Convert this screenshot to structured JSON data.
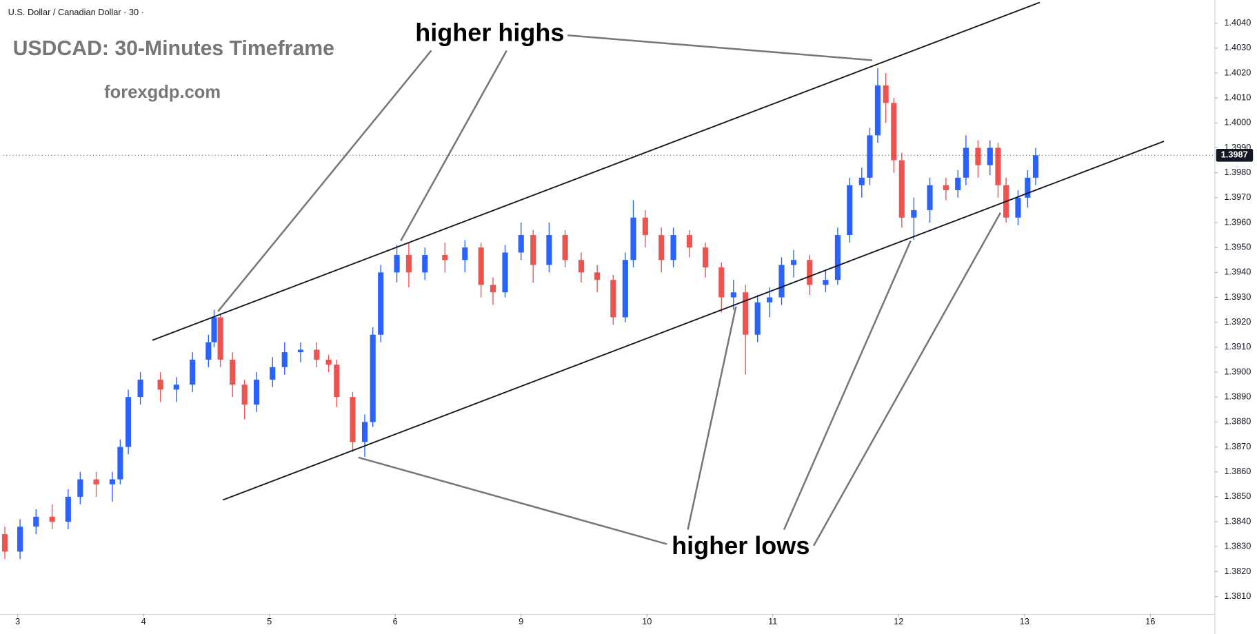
{
  "chart_data": {
    "type": "candlestick",
    "header": "U.S. Dollar / Canadian Dollar · 30 ·",
    "title": "USDCAD: 30-Minutes Timeframe",
    "subtitle": "forexgdp.com",
    "annotations": [
      "higher highs",
      "higher lows"
    ],
    "up_color": "#2962ff",
    "down_color": "#ef5350",
    "grid": false,
    "last_price": 1.3987,
    "xlim": [
      -0.115,
      9.51
    ],
    "xticks": [
      {
        "value": 0,
        "label": "3"
      },
      {
        "value": 1,
        "label": "4"
      },
      {
        "value": 2,
        "label": "5"
      },
      {
        "value": 3,
        "label": "6"
      },
      {
        "value": 4,
        "label": "9"
      },
      {
        "value": 5,
        "label": "10"
      },
      {
        "value": 6,
        "label": "11"
      },
      {
        "value": 7,
        "label": "12"
      },
      {
        "value": 8,
        "label": "13"
      },
      {
        "value": 9,
        "label": "16"
      }
    ],
    "ylim": [
      1.3803,
      1.4048
    ],
    "yticks": [
      {
        "value": 1.381,
        "label": "1.3810"
      },
      {
        "value": 1.382,
        "label": "1.3820"
      },
      {
        "value": 1.383,
        "label": "1.3830"
      },
      {
        "value": 1.384,
        "label": "1.3840"
      },
      {
        "value": 1.385,
        "label": "1.3850"
      },
      {
        "value": 1.386,
        "label": "1.3860"
      },
      {
        "value": 1.387,
        "label": "1.3870"
      },
      {
        "value": 1.388,
        "label": "1.3880"
      },
      {
        "value": 1.389,
        "label": "1.3890"
      },
      {
        "value": 1.39,
        "label": "1.3900"
      },
      {
        "value": 1.391,
        "label": "1.3910"
      },
      {
        "value": 1.392,
        "label": "1.3920"
      },
      {
        "value": 1.393,
        "label": "1.3930"
      },
      {
        "value": 1.394,
        "label": "1.3940"
      },
      {
        "value": 1.395,
        "label": "1.3950"
      },
      {
        "value": 1.396,
        "label": "1.3960"
      },
      {
        "value": 1.397,
        "label": "1.3970"
      },
      {
        "value": 1.398,
        "label": "1.3980"
      },
      {
        "value": 1.399,
        "label": "1.3990"
      },
      {
        "value": 1.4,
        "label": "1.4000"
      },
      {
        "value": 1.401,
        "label": "1.4010"
      },
      {
        "value": 1.402,
        "label": "1.4020"
      },
      {
        "value": 1.403,
        "label": "1.4030"
      },
      {
        "value": 1.404,
        "label": "1.4040"
      }
    ],
    "x": [
      -0.102,
      0.019,
      0.146,
      0.274,
      0.401,
      0.497,
      0.624,
      0.752,
      0.815,
      0.879,
      0.975,
      1.134,
      1.261,
      1.389,
      1.516,
      1.561,
      1.611,
      1.707,
      1.803,
      1.898,
      2.025,
      2.121,
      2.248,
      2.376,
      2.471,
      2.535,
      2.662,
      2.758,
      2.822,
      2.885,
      3.013,
      3.108,
      3.236,
      3.395,
      3.554,
      3.682,
      3.777,
      3.873,
      4.0,
      4.096,
      4.223,
      4.35,
      4.478,
      4.605,
      4.732,
      4.828,
      4.892,
      4.987,
      5.115,
      5.21,
      5.338,
      5.465,
      5.592,
      5.688,
      5.783,
      5.879,
      5.975,
      6.07,
      6.166,
      6.293,
      6.42,
      6.516,
      6.611,
      6.707,
      6.771,
      6.834,
      6.898,
      6.962,
      7.025,
      7.121,
      7.248,
      7.376,
      7.471,
      7.535,
      7.631,
      7.726,
      7.79,
      7.854,
      7.949,
      8.025,
      8.089
    ],
    "open": [
      1.3835,
      1.3828,
      1.3838,
      1.3842,
      1.384,
      1.385,
      1.3857,
      1.3855,
      1.3857,
      1.387,
      1.389,
      1.3897,
      1.3893,
      1.3895,
      1.3905,
      1.3912,
      1.3922,
      1.3905,
      1.3895,
      1.3887,
      1.3897,
      1.3902,
      1.3908,
      1.3909,
      1.3905,
      1.3903,
      1.389,
      1.3872,
      1.388,
      1.3915,
      1.394,
      1.3947,
      1.394,
      1.3947,
      1.3945,
      1.395,
      1.3935,
      1.3932,
      1.3948,
      1.3955,
      1.3943,
      1.3955,
      1.3945,
      1.394,
      1.3937,
      1.3922,
      1.3945,
      1.3962,
      1.3955,
      1.3945,
      1.3955,
      1.395,
      1.3942,
      1.393,
      1.3932,
      1.3915,
      1.3928,
      1.393,
      1.3943,
      1.3945,
      1.3935,
      1.3937,
      1.3955,
      1.3975,
      1.3978,
      1.3995,
      1.4015,
      1.4008,
      1.3985,
      1.3962,
      1.3965,
      1.3975,
      1.3973,
      1.3978,
      1.399,
      1.3983,
      1.399,
      1.3975,
      1.3962,
      1.397,
      1.3978
    ],
    "high": [
      1.3838,
      1.3841,
      1.3845,
      1.3847,
      1.3853,
      1.386,
      1.386,
      1.386,
      1.3873,
      1.3893,
      1.39,
      1.39,
      1.3898,
      1.3908,
      1.3915,
      1.3925,
      1.3923,
      1.3908,
      1.3897,
      1.39,
      1.3906,
      1.3912,
      1.3912,
      1.3912,
      1.3907,
      1.3905,
      1.3892,
      1.3883,
      1.3918,
      1.3943,
      1.3951,
      1.3952,
      1.395,
      1.3952,
      1.3953,
      1.3952,
      1.3938,
      1.3951,
      1.396,
      1.3957,
      1.396,
      1.3957,
      1.3948,
      1.3943,
      1.3939,
      1.3948,
      1.3969,
      1.3965,
      1.3958,
      1.3958,
      1.3957,
      1.3952,
      1.3944,
      1.3937,
      1.3935,
      1.3931,
      1.3934,
      1.3946,
      1.3949,
      1.3947,
      1.3941,
      1.3958,
      1.3978,
      1.3982,
      1.3998,
      1.4022,
      1.402,
      1.401,
      1.3988,
      1.397,
      1.3978,
      1.3978,
      1.3981,
      1.3995,
      1.3993,
      1.3993,
      1.3992,
      1.3978,
      1.3973,
      1.3981,
      1.399
    ],
    "low": [
      1.3825,
      1.3825,
      1.3835,
      1.3837,
      1.3837,
      1.3847,
      1.385,
      1.3848,
      1.3855,
      1.3867,
      1.3887,
      1.3888,
      1.3888,
      1.3892,
      1.3902,
      1.391,
      1.3902,
      1.389,
      1.3881,
      1.3884,
      1.3894,
      1.3899,
      1.3904,
      1.3902,
      1.39,
      1.3886,
      1.3868,
      1.3866,
      1.3878,
      1.3912,
      1.3936,
      1.3934,
      1.3937,
      1.394,
      1.394,
      1.393,
      1.3927,
      1.393,
      1.3945,
      1.3936,
      1.394,
      1.3942,
      1.3936,
      1.3932,
      1.3919,
      1.392,
      1.3942,
      1.395,
      1.394,
      1.3942,
      1.3946,
      1.3938,
      1.3924,
      1.3925,
      1.3899,
      1.3912,
      1.3922,
      1.3927,
      1.3938,
      1.3931,
      1.3932,
      1.3935,
      1.3952,
      1.397,
      1.3975,
      1.3992,
      1.4,
      1.398,
      1.3958,
      1.3953,
      1.396,
      1.3969,
      1.397,
      1.3975,
      1.3978,
      1.3979,
      1.397,
      1.396,
      1.3959,
      1.3966,
      1.3975
    ],
    "close": [
      1.3828,
      1.3838,
      1.3842,
      1.384,
      1.385,
      1.3857,
      1.3855,
      1.3857,
      1.387,
      1.389,
      1.3897,
      1.3893,
      1.3895,
      1.3905,
      1.3912,
      1.3922,
      1.3905,
      1.3895,
      1.3887,
      1.3897,
      1.3902,
      1.3908,
      1.3909,
      1.3905,
      1.3903,
      1.389,
      1.3872,
      1.388,
      1.3915,
      1.394,
      1.3947,
      1.394,
      1.3947,
      1.3945,
      1.395,
      1.3935,
      1.3932,
      1.3948,
      1.3955,
      1.3943,
      1.3955,
      1.3945,
      1.394,
      1.3937,
      1.3922,
      1.3945,
      1.3962,
      1.3955,
      1.3945,
      1.3955,
      1.395,
      1.3942,
      1.393,
      1.3932,
      1.3915,
      1.3928,
      1.393,
      1.3943,
      1.3945,
      1.3935,
      1.3937,
      1.3955,
      1.3975,
      1.3978,
      1.3995,
      1.4015,
      1.4008,
      1.3985,
      1.3962,
      1.3965,
      1.3975,
      1.3973,
      1.3978,
      1.399,
      1.3983,
      1.399,
      1.3975,
      1.3962,
      1.397,
      1.3978,
      1.3987
    ]
  }
}
